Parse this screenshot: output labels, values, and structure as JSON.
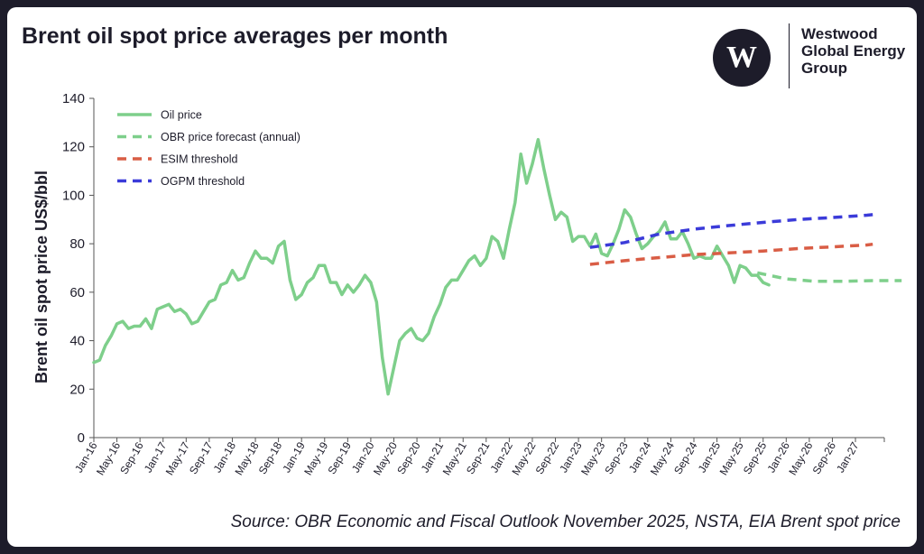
{
  "title": "Brent oil spot price averages per month",
  "logo": {
    "icon": "westwood-w-logo",
    "lines": [
      "Westwood",
      "Global Energy",
      "Group"
    ]
  },
  "source": "Source: OBR Economic and Fiscal Outlook November 2025, NSTA, EIA Brent spot price",
  "chart_data": {
    "type": "line",
    "title": "",
    "xlabel": "",
    "ylabel": "Brent oil spot price US$/bbl",
    "ylim": [
      0,
      140
    ],
    "yticks": [
      0,
      20,
      40,
      60,
      80,
      100,
      120,
      140
    ],
    "grid": false,
    "legend_position": "top-left",
    "x_tick_labels": [
      "Jan-16",
      "May-16",
      "Sep-16",
      "Jan-17",
      "May-17",
      "Sep-17",
      "Jan-18",
      "May-18",
      "Sep-18",
      "Jan-19",
      "May-19",
      "Sep-19",
      "Jan-20",
      "May-20",
      "Sep-20",
      "Jan-21",
      "May-21",
      "Sep-21",
      "Jan-22",
      "May-22",
      "Sep-22",
      "Jan-23",
      "May-23",
      "Sep-23",
      "Jan-24",
      "May-24",
      "Sep-24",
      "Jan-25",
      "May-25",
      "Sep-25",
      "Jan-26",
      "May-26",
      "Sep-26",
      "Jan-27"
    ],
    "series": [
      {
        "name": "Oil price",
        "style": "solid",
        "color": "#7ecf8b",
        "start": "Jan-16",
        "values": [
          31,
          32,
          38,
          42,
          47,
          48,
          45,
          46,
          46,
          49,
          45,
          53,
          54,
          55,
          52,
          53,
          51,
          47,
          48,
          52,
          56,
          57,
          63,
          64,
          69,
          65,
          66,
          72,
          77,
          74,
          74,
          72,
          79,
          81,
          65,
          57,
          59,
          64,
          66,
          71,
          71,
          64,
          64,
          59,
          63,
          60,
          63,
          67,
          64,
          56,
          33,
          18,
          29,
          40,
          43,
          45,
          41,
          40,
          43,
          50,
          55,
          62,
          65,
          65,
          69,
          73,
          75,
          71,
          74,
          83,
          81,
          74,
          86,
          97,
          117,
          105,
          113,
          123,
          111,
          100,
          90,
          93,
          91,
          81,
          83,
          83,
          79,
          84,
          76,
          75,
          80,
          86,
          94,
          91,
          84,
          78,
          80,
          83,
          85,
          89,
          82,
          82,
          85,
          80,
          74,
          75,
          74,
          74,
          79,
          75,
          71,
          64,
          71,
          70,
          67,
          67,
          64,
          63
        ]
      },
      {
        "name": "OBR price forecast (annual)",
        "style": "dashed",
        "color": "#7ecf8b",
        "points": [
          [
            "Aug-25",
            68
          ],
          [
            "Jan-26",
            65.5
          ],
          [
            "Jun-26",
            64.5
          ],
          [
            "Nov-26",
            64.5
          ],
          [
            "Apr-27",
            64.8
          ],
          [
            "Sep-27",
            64.8
          ]
        ]
      },
      {
        "name": "ESIM threshold",
        "style": "dashed",
        "color": "#d95d45",
        "points": [
          [
            "Mar-23",
            71.5
          ],
          [
            "Sep-23",
            73
          ],
          [
            "Mar-24",
            74.3
          ],
          [
            "Sep-24",
            75.5
          ],
          [
            "Mar-25",
            76.2
          ],
          [
            "Sep-25",
            77
          ],
          [
            "Mar-26",
            78
          ],
          [
            "Sep-26",
            78.7
          ],
          [
            "Mar-27",
            79.5
          ],
          [
            "Apr-27",
            79.8
          ]
        ]
      },
      {
        "name": "OGPM threshold",
        "style": "dashed",
        "color": "#3b3bd9",
        "points": [
          [
            "Mar-23",
            78.5
          ],
          [
            "Sep-23",
            80.5
          ],
          [
            "Mar-24",
            84
          ],
          [
            "Sep-24",
            86
          ],
          [
            "Mar-25",
            87.5
          ],
          [
            "Sep-25",
            88.8
          ],
          [
            "Mar-26",
            90
          ],
          [
            "Sep-26",
            90.8
          ],
          [
            "Mar-27",
            91.8
          ],
          [
            "Apr-27",
            92
          ]
        ]
      }
    ]
  }
}
